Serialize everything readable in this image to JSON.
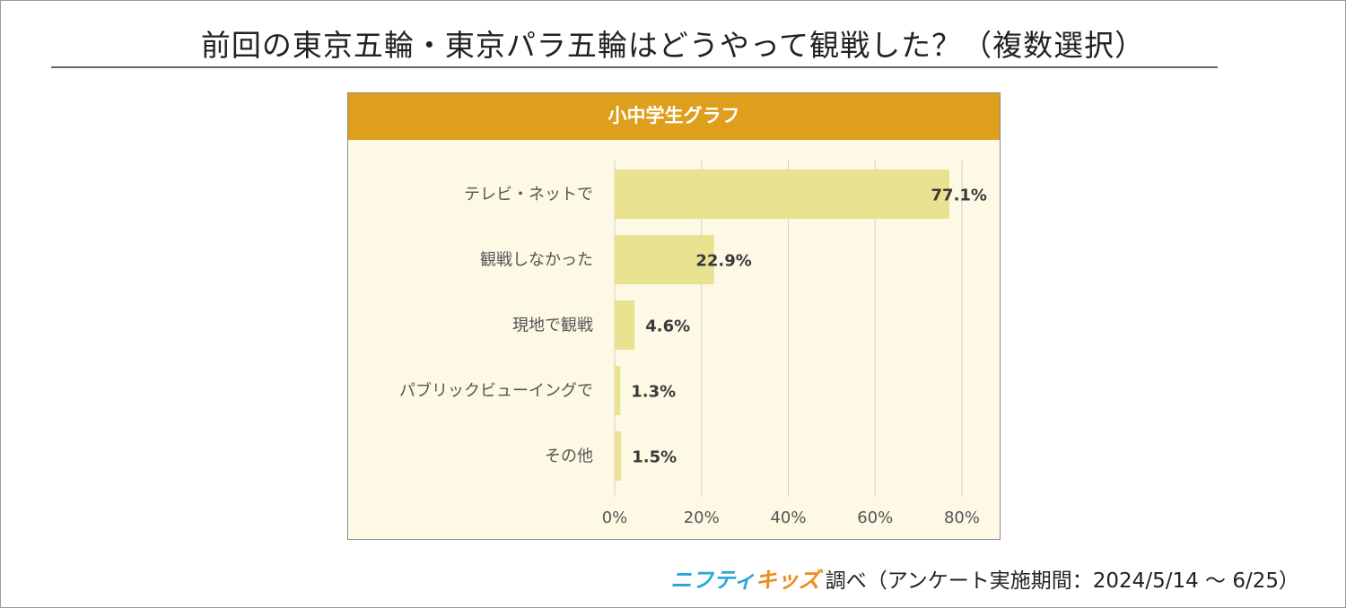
{
  "title": "前回の東京五輪・東京パラ五輪はどうやって観戦した？（複数選択）",
  "colors": {
    "header": "#dd9f1c",
    "bar": "#e9e290",
    "panel": "#fdf9e4",
    "grid": "#d0d0d0"
  },
  "chart_data": {
    "type": "bar",
    "orientation": "horizontal",
    "title": "小中学生グラフ",
    "categories": [
      "テレビ・ネットで",
      "観戦しなかった",
      "現地で観戦",
      "パブリックビューイングで",
      "その他"
    ],
    "values": [
      77.1,
      22.9,
      4.6,
      1.3,
      1.5
    ],
    "value_labels": [
      "77.1%",
      "22.9%",
      "4.6%",
      "1.3%",
      "1.5%"
    ],
    "xlim": [
      0,
      80
    ],
    "xticks": [
      0,
      20,
      40,
      60,
      80
    ],
    "xtick_labels": [
      "0%",
      "20%",
      "40%",
      "60%",
      "80%"
    ],
    "grid": true
  },
  "footer": {
    "logo_part1": "ニフティ",
    "logo_part2": "キッズ",
    "text": "調べ（アンケート実施期間：2024/5/14 ～ 6/25）"
  }
}
